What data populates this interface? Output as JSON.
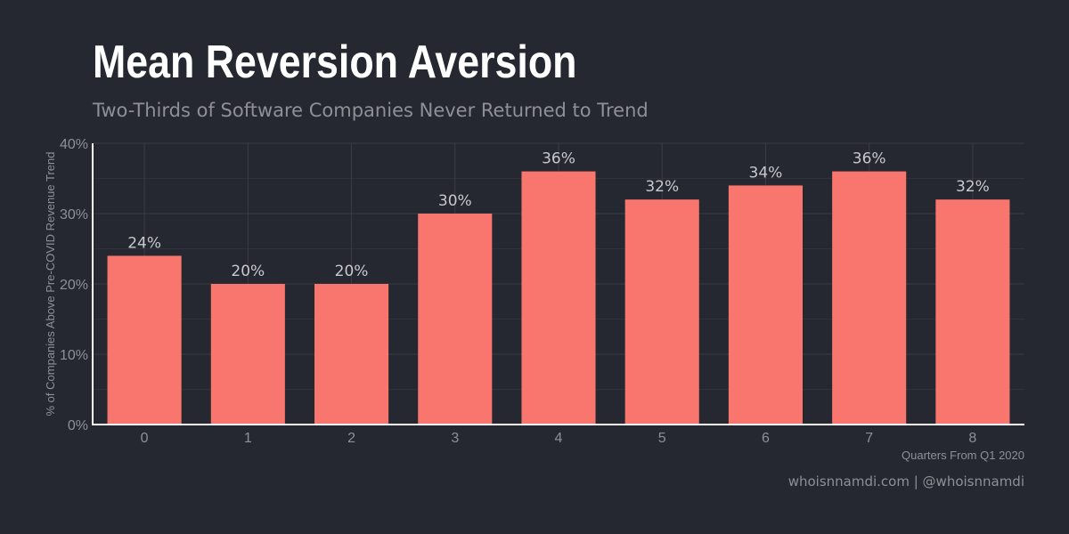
{
  "chart_data": {
    "type": "bar",
    "title": "Mean Reversion Aversion",
    "subtitle": "Two-Thirds of Software Companies Never Returned to Trend",
    "xlabel": "Quarters From Q1 2020",
    "ylabel": "% of Companies Above Pre-COVID Revenue Trend",
    "categories": [
      "0",
      "1",
      "2",
      "3",
      "4",
      "5",
      "6",
      "7",
      "8"
    ],
    "values": [
      24,
      20,
      20,
      30,
      36,
      32,
      34,
      36,
      32
    ],
    "data_labels": [
      "24%",
      "20%",
      "20%",
      "30%",
      "36%",
      "32%",
      "34%",
      "36%",
      "32%"
    ],
    "ylim": [
      0,
      40
    ],
    "yticks": [
      0,
      10,
      20,
      30,
      40
    ],
    "ytick_labels": [
      "0%",
      "10%",
      "20%",
      "30%",
      "40%"
    ],
    "grid": true,
    "bar_color": "#F8766D",
    "background_color": "#252830",
    "caption": "whoisnnamdi.com | @whoisnnamdi"
  }
}
